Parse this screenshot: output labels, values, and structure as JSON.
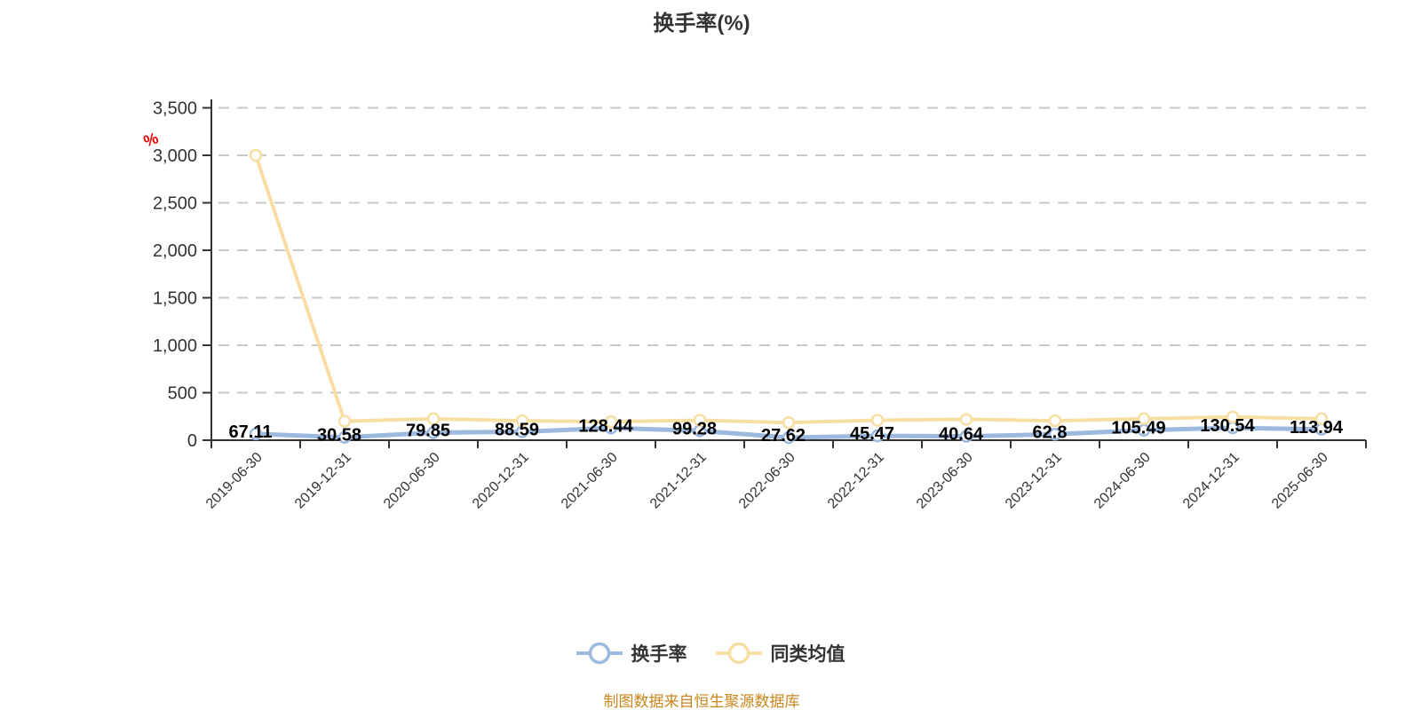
{
  "chart_data": {
    "type": "line",
    "title": "换手率(%)",
    "y_axis_unit": "%",
    "categories": [
      "2019-06-30",
      "2019-12-31",
      "2020-06-30",
      "2020-12-31",
      "2021-06-30",
      "2021-12-31",
      "2022-06-30",
      "2022-12-31",
      "2023-06-30",
      "2023-12-31",
      "2024-06-30",
      "2024-12-31",
      "2025-06-30"
    ],
    "y_ticks": [
      "0",
      "500",
      "1,000",
      "1,500",
      "2,000",
      "2,500",
      "3,000",
      "3,500"
    ],
    "ylim": [
      0,
      3500
    ],
    "grid": "horizontal-dashed",
    "legend_position": "bottom",
    "series": [
      {
        "name": "换手率",
        "color": "#9cb9e0",
        "values": [
          67.11,
          30.58,
          79.85,
          88.59,
          128.44,
          99.28,
          27.62,
          45.47,
          40.64,
          62.8,
          105.49,
          130.54,
          113.94
        ],
        "labels": [
          "67.11",
          "30.58",
          "79.85",
          "88.59",
          "128.44",
          "99.28",
          "27.62",
          "45.47",
          "40.64",
          "62.8",
          "105.49",
          "130.54",
          "113.94"
        ],
        "labels_visible": true
      },
      {
        "name": "同类均值",
        "color": "#f7dfa4",
        "values": [
          3000,
          200,
          225,
          205,
          195,
          210,
          185,
          210,
          220,
          205,
          225,
          245,
          225
        ],
        "labels": [],
        "labels_visible": false
      }
    ]
  },
  "footer": {
    "source_note": "制图数据来自恒生聚源数据库"
  },
  "colors": {
    "background": "#ffffff",
    "title_text": "#333333",
    "axis": "#333333",
    "grid_line": "#c8c8c8",
    "data_label": "#000000",
    "unit_mark": "#e60000",
    "source_note": "#c8861c",
    "series_turnover": "#9cb9e0",
    "series_peer_average": "#f7dfa4"
  }
}
